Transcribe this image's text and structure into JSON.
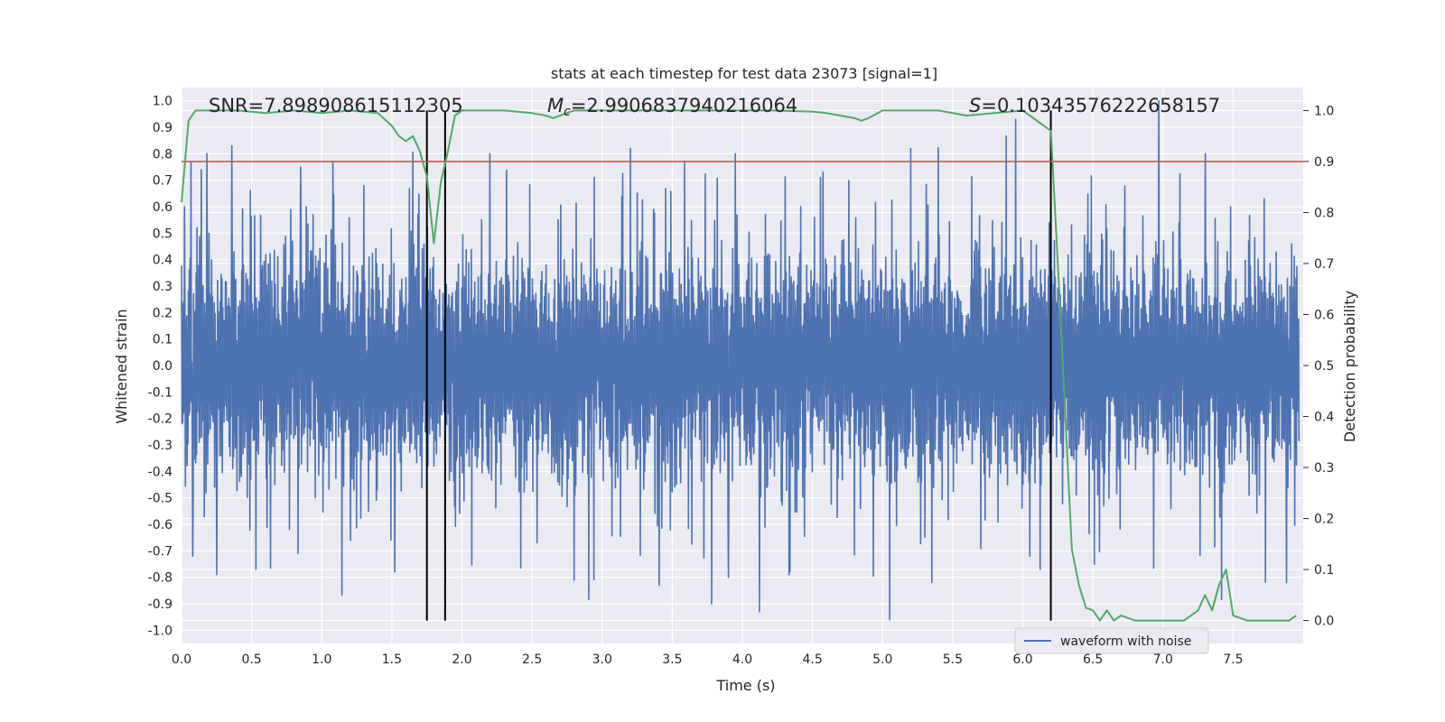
{
  "chart_data": {
    "type": "line",
    "title": "stats at each timestep for test data 23073 [signal=1]",
    "xlabel": "Time (s)",
    "ylabel": "Whitened strain",
    "y2label": "Detection probability",
    "xlim": [
      0.0,
      8.0
    ],
    "ylim": [
      -1.05,
      1.05
    ],
    "y2lim": [
      -0.045,
      1.045
    ],
    "x_ticks": [
      "0.0",
      "0.5",
      "1.0",
      "1.5",
      "2.0",
      "2.5",
      "3.0",
      "3.5",
      "4.0",
      "4.5",
      "5.0",
      "5.5",
      "6.0",
      "6.5",
      "7.0",
      "7.5"
    ],
    "y_ticks": [
      "-1.0",
      "-0.9",
      "-0.8",
      "-0.7",
      "-0.6",
      "-0.5",
      "-0.4",
      "-0.3",
      "-0.2",
      "-0.1",
      "0.0",
      "0.1",
      "0.2",
      "0.3",
      "0.4",
      "0.5",
      "0.6",
      "0.7",
      "0.8",
      "0.9",
      "1.0"
    ],
    "y2_ticks": [
      "0.0",
      "0.1",
      "0.2",
      "0.3",
      "0.4",
      "0.5",
      "0.6",
      "0.7",
      "0.8",
      "0.9",
      "1.0"
    ],
    "annotations": {
      "snr": "SNR=7.898908615112305",
      "mc_symbol": "M",
      "mc_sub": "c",
      "mc_value": "=2.9906837940216064",
      "s_symbol": "S",
      "s_value": "=0.10343576222658157"
    },
    "threshold": {
      "value": 0.9,
      "axis": "y2",
      "color": "#c44e52"
    },
    "vertical_lines": [
      1.75,
      1.88,
      6.2
    ],
    "legend": {
      "label": "waveform with noise",
      "position": "lower-right"
    },
    "series": [
      {
        "name": "waveform with noise",
        "axis": "y",
        "color": "#4c72b0",
        "description": "noisy whitened strain, dense band approx. -0.45 to 0.45 with spikes up to 1.0 and down to -0.96",
        "peaks": [
          {
            "x": 0.02,
            "y": 0.6
          },
          {
            "x": 0.18,
            "y": 0.8
          },
          {
            "x": 0.25,
            "y": 0.8
          },
          {
            "x": 0.36,
            "y": 0.83
          },
          {
            "x": 0.85,
            "y": 0.75
          },
          {
            "x": 1.3,
            "y": 0.68
          },
          {
            "x": 2.2,
            "y": 0.8
          },
          {
            "x": 3.2,
            "y": 0.82
          },
          {
            "x": 3.95,
            "y": 0.8
          },
          {
            "x": 5.2,
            "y": 0.82
          },
          {
            "x": 5.95,
            "y": 0.93
          },
          {
            "x": 6.97,
            "y": 1.0
          },
          {
            "x": 7.3,
            "y": 0.8
          }
        ],
        "troughs": [
          {
            "x": 0.08,
            "y": -0.72
          },
          {
            "x": 0.25,
            "y": -0.79
          },
          {
            "x": 0.53,
            "y": -0.77
          },
          {
            "x": 1.52,
            "y": -0.78
          },
          {
            "x": 3.78,
            "y": -0.9
          },
          {
            "x": 3.9,
            "y": -0.8
          },
          {
            "x": 4.12,
            "y": -0.93
          },
          {
            "x": 5.05,
            "y": -0.96
          },
          {
            "x": 5.35,
            "y": -0.82
          },
          {
            "x": 6.05,
            "y": -0.72
          },
          {
            "x": 7.88,
            "y": -0.82
          }
        ]
      },
      {
        "name": "Detection probability",
        "axis": "y2",
        "color": "#55a868",
        "x": [
          0.0,
          0.05,
          0.1,
          0.2,
          0.4,
          0.6,
          0.8,
          1.0,
          1.2,
          1.4,
          1.5,
          1.55,
          1.6,
          1.65,
          1.7,
          1.75,
          1.8,
          1.85,
          1.9,
          1.95,
          2.0,
          2.1,
          2.3,
          2.5,
          2.6,
          2.65,
          2.7,
          2.8,
          3.0,
          3.2,
          3.5,
          3.8,
          4.0,
          4.2,
          4.5,
          4.6,
          4.7,
          4.8,
          4.85,
          4.9,
          5.0,
          5.2,
          5.4,
          5.6,
          5.8,
          6.0,
          6.1,
          6.2,
          6.25,
          6.3,
          6.35,
          6.4,
          6.45,
          6.5,
          6.55,
          6.6,
          6.65,
          6.7,
          6.8,
          6.9,
          7.0,
          7.1,
          7.15,
          7.2,
          7.25,
          7.3,
          7.35,
          7.4,
          7.45,
          7.5,
          7.6,
          7.7,
          7.8,
          7.9,
          7.95
        ],
        "y": [
          0.82,
          0.98,
          1.0,
          1.0,
          1.0,
          0.995,
          1.0,
          0.995,
          1.0,
          0.995,
          0.97,
          0.95,
          0.94,
          0.95,
          0.92,
          0.87,
          0.74,
          0.86,
          0.92,
          0.99,
          1.0,
          1.0,
          1.0,
          0.995,
          0.99,
          0.985,
          0.99,
          1.0,
          1.0,
          1.0,
          1.0,
          1.0,
          1.0,
          1.0,
          0.998,
          0.995,
          0.99,
          0.985,
          0.98,
          0.985,
          1.0,
          1.0,
          1.0,
          0.99,
          0.995,
          1.0,
          0.98,
          0.96,
          0.7,
          0.42,
          0.14,
          0.07,
          0.025,
          0.02,
          0.0,
          0.02,
          0.0,
          0.01,
          0.0,
          0.0,
          0.0,
          0.0,
          0.0,
          0.01,
          0.02,
          0.05,
          0.02,
          0.07,
          0.1,
          0.01,
          0.0,
          0.0,
          0.0,
          0.0,
          0.01
        ]
      }
    ]
  }
}
